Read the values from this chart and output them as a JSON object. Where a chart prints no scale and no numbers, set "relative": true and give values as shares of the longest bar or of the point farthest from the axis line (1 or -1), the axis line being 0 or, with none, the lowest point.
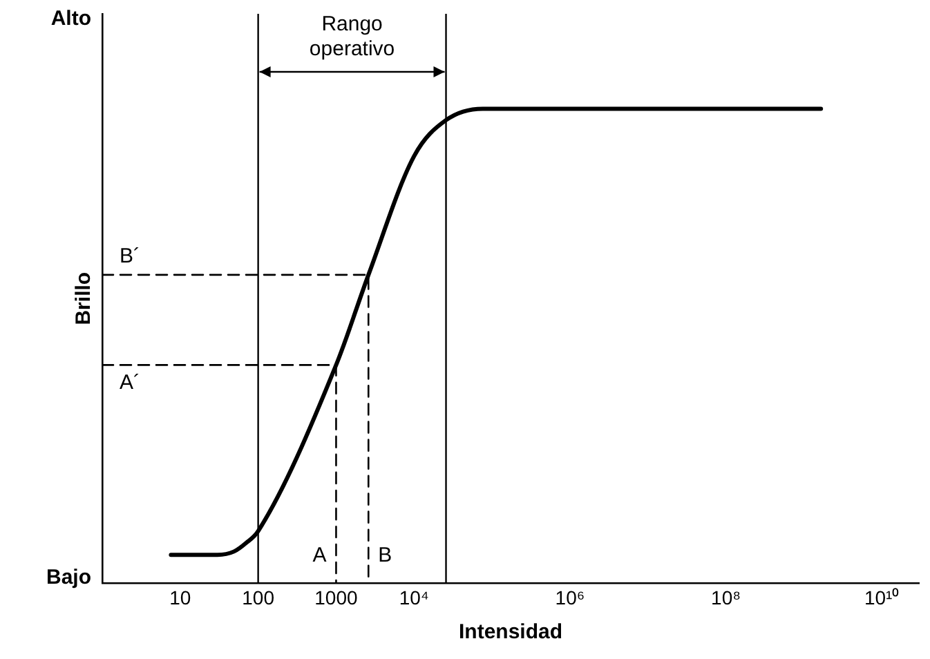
{
  "chart_data": {
    "type": "line",
    "xlabel": "Intensidad",
    "ylabel": "Brillo",
    "log": "x",
    "relative": true,
    "xlim": [
      1,
      30000000000
    ],
    "xticks": [
      10,
      100,
      1000,
      {
        "value": 10000,
        "label": "10⁴"
      },
      {
        "value": 1000000,
        "label": "10⁶"
      },
      {
        "value": 100000000,
        "label": "10⁸"
      },
      {
        "value": 10000000000,
        "label": "10¹⁰"
      }
    ],
    "series": [
      {
        "color": "#000000",
        "line_style": "solid",
        "x": [
          7.6,
          30,
          49,
          70,
          100,
          1000,
          2600,
          10000,
          25700,
          76000,
          1660000000
        ],
        "values": [
          0.06,
          0.06,
          0.067,
          0.085,
          0.11,
          0.46,
          0.65,
          0.9,
          0.976,
          1,
          1
        ]
      },
      {
        "color": "#000000",
        "line_style": "dashed",
        "x": [
          1,
          1000,
          1000
        ],
        "values": [
          0.46,
          0.46,
          0
        ]
      },
      {
        "color": "#000000",
        "line_style": "dashed",
        "x": [
          1,
          2600,
          2600
        ],
        "values": [
          0.65,
          0.65,
          0
        ]
      }
    ],
    "ref_lines": [
      {
        "axis": "x",
        "value": 100
      },
      {
        "axis": "x",
        "value": 25700
      }
    ],
    "annotations": [
      "Alto",
      "Rango operativo",
      "Bajo",
      {
        "text": "A",
        "x": 1000,
        "y": 0
      },
      {
        "text": "B",
        "x": 2600,
        "y": 0
      },
      {
        "text": "A´",
        "x": 1,
        "y": 0.46
      },
      {
        "text": "B´",
        "x": 1,
        "y": 0.65
      }
    ],
    "grid": false,
    "legend": false,
    "marker": "none"
  }
}
